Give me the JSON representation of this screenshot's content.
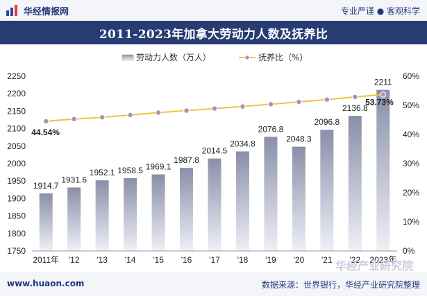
{
  "header": {
    "brand": "华经情报网",
    "tagline": "专业严谨 ● 客观科学"
  },
  "chart_title": "2011-2023年加拿大劳动力人数及抚养比",
  "footer": {
    "url": "www.huaon.com",
    "source": "数据来源：世界银行，华经产业研究院整理"
  },
  "watermark": "华经产业研究院",
  "colors": {
    "header_bg": "#f4f5f9",
    "title_bg": "#283c74",
    "bar_top": "#8a8fa8",
    "bar_bottom": "#eef0f7",
    "line": "#f2c23a",
    "marker": "#9a9ab0"
  },
  "chart_data": {
    "type": "bar+line",
    "categories": [
      "2011年",
      "'12",
      "'13",
      "'14",
      "'15",
      "'16",
      "'17",
      "'18",
      "'19",
      "'20",
      "'21",
      "'22",
      "2023年"
    ],
    "series": [
      {
        "name": "劳动力人数（万人）",
        "type": "bar",
        "axis": "left",
        "values": [
          1914.7,
          1931.6,
          1952.1,
          1958.5,
          1969.1,
          1987.8,
          2014.5,
          2034.8,
          2076.8,
          2048.3,
          2096.8,
          2136.8,
          2211
        ]
      },
      {
        "name": "抚养比（%）",
        "type": "line",
        "axis": "right",
        "values": [
          44.54,
          45.3,
          45.9,
          46.7,
          47.5,
          48.2,
          48.9,
          49.6,
          50.4,
          51.2,
          52.0,
          52.9,
          53.73
        ],
        "labels": {
          "0": "44.54%",
          "12": "53.73%"
        }
      }
    ],
    "left_axis": {
      "min": 1750,
      "max": 2250,
      "ticks": [
        "1750",
        "1800",
        "1850",
        "1900",
        "1950",
        "2000",
        "2050",
        "2100",
        "2150",
        "2200",
        "2250"
      ]
    },
    "right_axis": {
      "min": 0,
      "max": 60,
      "ticks": [
        "0%",
        "10%",
        "20%",
        "30%",
        "40%",
        "50%",
        "60%"
      ]
    },
    "legend": [
      "劳动力人数（万人）",
      "抚养比（%）"
    ]
  }
}
